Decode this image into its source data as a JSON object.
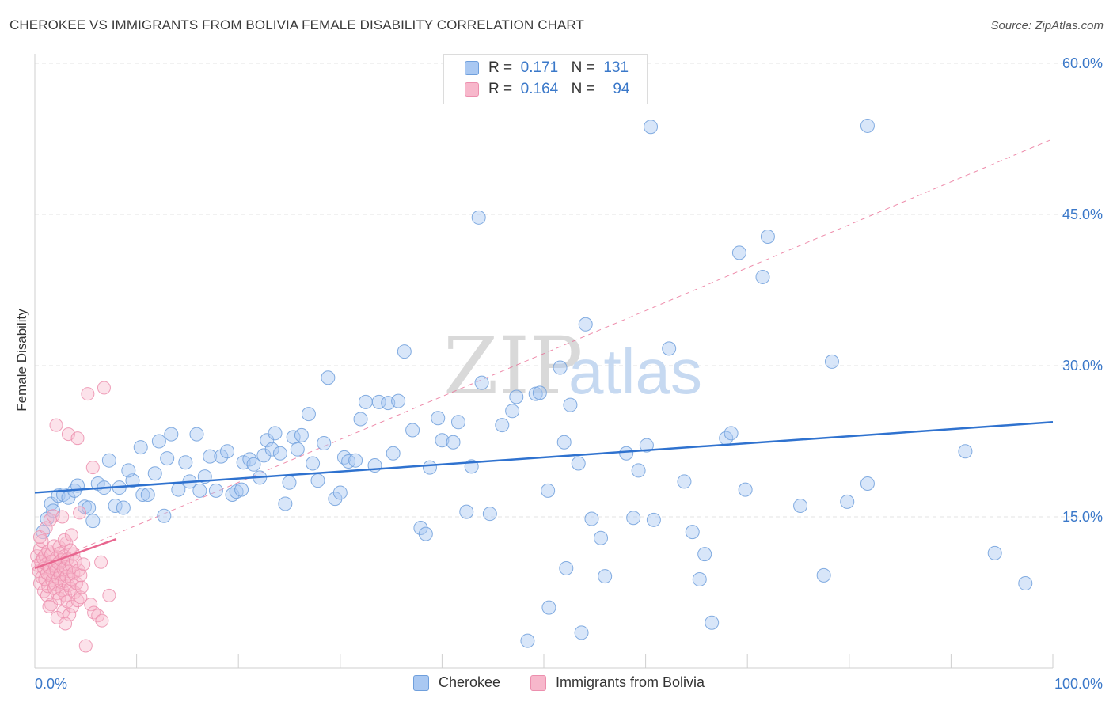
{
  "title": "CHEROKEE VS IMMIGRANTS FROM BOLIVIA FEMALE DISABILITY CORRELATION CHART",
  "source": "Source: ZipAtlas.com",
  "watermark": {
    "zip": "ZIP",
    "atlas": "atlas"
  },
  "legend": {
    "r_label": "R =",
    "n_label": "N =",
    "rows": [
      {
        "name": "Cherokee",
        "r": "0.171",
        "n": "131"
      },
      {
        "name": "Immigrants from Bolivia",
        "r": "0.164",
        "n": "94"
      }
    ]
  },
  "bottom_legend": [
    "Cherokee",
    "Immigrants from Bolivia"
  ],
  "colors": {
    "blue_fill": "#a9c8f2",
    "blue_stroke": "#6f9fdc",
    "blue_line": "#2f72cf",
    "pink_fill": "#f7b7cb",
    "pink_stroke": "#ec8fae",
    "pink_line": "#e8668f",
    "axis_text": "#3a78c9",
    "grid": "#e3e3e3"
  },
  "chart_data": {
    "type": "scatter",
    "title": "CHEROKEE VS IMMIGRANTS FROM BOLIVIA FEMALE DISABILITY CORRELATION CHART",
    "xlabel": "",
    "ylabel": "Female Disability",
    "xlim": [
      0,
      100
    ],
    "ylim": [
      0,
      60
    ],
    "x_tick_labels": [
      "0.0%",
      "100.0%"
    ],
    "y_ticks": [
      15,
      30,
      45,
      60
    ],
    "y_tick_labels": [
      "15.0%",
      "30.0%",
      "45.0%",
      "60.0%"
    ],
    "grid": "horizontal dashed",
    "series": [
      {
        "name": "Cherokee",
        "trend": {
          "x": [
            0,
            100
          ],
          "y": [
            17.4,
            24.4
          ],
          "style": "solid"
        },
        "points": [
          [
            0.8,
            13.5
          ],
          [
            1.2,
            14.8
          ],
          [
            1.6,
            16.3
          ],
          [
            1.8,
            15.6
          ],
          [
            2.3,
            17.1
          ],
          [
            2.8,
            17.2
          ],
          [
            3.3,
            16.9
          ],
          [
            3.9,
            17.6
          ],
          [
            4.2,
            18.1
          ],
          [
            4.9,
            16.0
          ],
          [
            5.3,
            15.9
          ],
          [
            5.7,
            14.6
          ],
          [
            6.2,
            18.3
          ],
          [
            6.8,
            17.9
          ],
          [
            7.3,
            20.6
          ],
          [
            7.9,
            16.1
          ],
          [
            8.3,
            17.9
          ],
          [
            8.7,
            15.9
          ],
          [
            9.6,
            18.6
          ],
          [
            9.2,
            19.6
          ],
          [
            10.4,
            21.9
          ],
          [
            10.6,
            17.2
          ],
          [
            11.1,
            17.2
          ],
          [
            11.8,
            19.3
          ],
          [
            12.2,
            22.5
          ],
          [
            12.7,
            15.1
          ],
          [
            13.0,
            20.8
          ],
          [
            13.4,
            23.2
          ],
          [
            14.1,
            17.7
          ],
          [
            14.8,
            20.4
          ],
          [
            15.2,
            18.5
          ],
          [
            15.9,
            23.2
          ],
          [
            16.2,
            17.6
          ],
          [
            16.7,
            19.0
          ],
          [
            17.2,
            21.0
          ],
          [
            17.8,
            17.6
          ],
          [
            18.3,
            21.0
          ],
          [
            18.9,
            21.5
          ],
          [
            19.4,
            17.2
          ],
          [
            19.8,
            17.5
          ],
          [
            20.3,
            17.7
          ],
          [
            20.5,
            20.4
          ],
          [
            21.1,
            20.7
          ],
          [
            21.5,
            20.2
          ],
          [
            22.1,
            18.9
          ],
          [
            22.5,
            21.1
          ],
          [
            22.8,
            22.6
          ],
          [
            23.3,
            21.7
          ],
          [
            23.6,
            23.3
          ],
          [
            24.1,
            21.3
          ],
          [
            24.6,
            16.3
          ],
          [
            25.0,
            18.4
          ],
          [
            25.4,
            22.9
          ],
          [
            25.8,
            21.7
          ],
          [
            26.2,
            23.1
          ],
          [
            26.9,
            25.2
          ],
          [
            27.3,
            20.3
          ],
          [
            27.8,
            18.6
          ],
          [
            28.4,
            22.3
          ],
          [
            28.8,
            28.8
          ],
          [
            29.5,
            16.8
          ],
          [
            30.0,
            17.4
          ],
          [
            30.4,
            20.9
          ],
          [
            30.8,
            20.5
          ],
          [
            31.5,
            20.6
          ],
          [
            32.0,
            24.7
          ],
          [
            32.5,
            26.4
          ],
          [
            33.4,
            20.1
          ],
          [
            33.8,
            26.4
          ],
          [
            34.7,
            26.3
          ],
          [
            35.2,
            21.3
          ],
          [
            35.7,
            26.5
          ],
          [
            36.3,
            31.4
          ],
          [
            37.1,
            23.6
          ],
          [
            37.9,
            13.9
          ],
          [
            38.4,
            13.3
          ],
          [
            38.8,
            19.9
          ],
          [
            39.6,
            24.8
          ],
          [
            40.0,
            22.6
          ],
          [
            41.1,
            22.4
          ],
          [
            41.6,
            24.4
          ],
          [
            42.4,
            15.5
          ],
          [
            42.9,
            20.0
          ],
          [
            43.6,
            44.7
          ],
          [
            43.9,
            28.3
          ],
          [
            44.7,
            15.3
          ],
          [
            45.9,
            24.1
          ],
          [
            46.9,
            25.5
          ],
          [
            47.3,
            26.9
          ],
          [
            48.4,
            2.7
          ],
          [
            49.2,
            27.2
          ],
          [
            49.6,
            27.3
          ],
          [
            50.4,
            17.6
          ],
          [
            50.5,
            6.0
          ],
          [
            51.6,
            29.8
          ],
          [
            52.0,
            22.4
          ],
          [
            52.2,
            9.9
          ],
          [
            52.6,
            26.1
          ],
          [
            53.4,
            20.3
          ],
          [
            53.7,
            3.5
          ],
          [
            54.1,
            34.1
          ],
          [
            54.7,
            14.8
          ],
          [
            55.6,
            12.9
          ],
          [
            56.0,
            9.1
          ],
          [
            58.1,
            21.3
          ],
          [
            58.8,
            14.9
          ],
          [
            59.3,
            19.6
          ],
          [
            60.1,
            22.1
          ],
          [
            60.5,
            53.7
          ],
          [
            60.8,
            14.7
          ],
          [
            62.3,
            31.7
          ],
          [
            63.8,
            18.5
          ],
          [
            64.6,
            13.5
          ],
          [
            65.3,
            8.8
          ],
          [
            65.8,
            11.3
          ],
          [
            66.5,
            4.5
          ],
          [
            67.9,
            22.8
          ],
          [
            68.4,
            23.3
          ],
          [
            69.2,
            41.2
          ],
          [
            69.8,
            17.7
          ],
          [
            71.5,
            38.8
          ],
          [
            72.0,
            42.8
          ],
          [
            75.2,
            16.1
          ],
          [
            77.5,
            9.2
          ],
          [
            78.3,
            30.4
          ],
          [
            79.8,
            16.5
          ],
          [
            81.8,
            18.3
          ],
          [
            81.8,
            53.8
          ],
          [
            91.4,
            21.5
          ],
          [
            94.3,
            11.4
          ],
          [
            97.3,
            8.4
          ]
        ]
      },
      {
        "name": "Immigrants from Bolivia",
        "trend": {
          "x": [
            0,
            8.0
          ],
          "y": [
            9.9,
            12.8
          ],
          "style": "solid",
          "extended": {
            "x": [
              0,
              100
            ],
            "y": [
              9.9,
              52.5
            ],
            "style": "dashed"
          }
        },
        "points": [
          [
            0.2,
            11.1
          ],
          [
            0.3,
            10.2
          ],
          [
            0.4,
            9.6
          ],
          [
            0.5,
            11.8
          ],
          [
            0.5,
            8.4
          ],
          [
            0.6,
            10.5
          ],
          [
            0.7,
            9.0
          ],
          [
            0.7,
            12.6
          ],
          [
            0.8,
            10.9
          ],
          [
            0.9,
            7.6
          ],
          [
            0.9,
            9.9
          ],
          [
            1.0,
            11.2
          ],
          [
            1.0,
            8.8
          ],
          [
            1.1,
            10.3
          ],
          [
            1.2,
            9.4
          ],
          [
            1.2,
            7.2
          ],
          [
            1.3,
            11.6
          ],
          [
            1.3,
            8.1
          ],
          [
            1.4,
            10.0
          ],
          [
            1.5,
            9.2
          ],
          [
            1.5,
            14.7
          ],
          [
            1.6,
            6.3
          ],
          [
            1.6,
            11.3
          ],
          [
            1.7,
            8.7
          ],
          [
            1.7,
            10.6
          ],
          [
            1.8,
            9.5
          ],
          [
            1.8,
            15.1
          ],
          [
            1.9,
            7.9
          ],
          [
            1.9,
            12.1
          ],
          [
            2.0,
            10.1
          ],
          [
            2.0,
            8.3
          ],
          [
            2.1,
            24.1
          ],
          [
            2.1,
            9.7
          ],
          [
            2.2,
            11.0
          ],
          [
            2.2,
            7.4
          ],
          [
            2.3,
            10.4
          ],
          [
            2.3,
            8.9
          ],
          [
            2.4,
            12.0
          ],
          [
            2.4,
            6.9
          ],
          [
            2.5,
            9.3
          ],
          [
            2.5,
            11.4
          ],
          [
            2.6,
            8.5
          ],
          [
            2.6,
            10.7
          ],
          [
            2.7,
            7.7
          ],
          [
            2.7,
            15.0
          ],
          [
            2.8,
            9.8
          ],
          [
            2.8,
            5.6
          ],
          [
            2.9,
            11.1
          ],
          [
            2.9,
            8.6
          ],
          [
            3.0,
            10.0
          ],
          [
            3.0,
            7.2
          ],
          [
            3.1,
            12.4
          ],
          [
            3.1,
            9.1
          ],
          [
            3.2,
            6.6
          ],
          [
            3.2,
            10.8
          ],
          [
            3.3,
            8.2
          ],
          [
            3.3,
            23.2
          ],
          [
            3.4,
            9.6
          ],
          [
            3.4,
            5.3
          ],
          [
            3.5,
            11.7
          ],
          [
            3.5,
            7.9
          ],
          [
            3.6,
            10.2
          ],
          [
            3.6,
            8.8
          ],
          [
            3.7,
            6.1
          ],
          [
            3.8,
            9.4
          ],
          [
            3.8,
            11.3
          ],
          [
            3.9,
            7.5
          ],
          [
            4.0,
            10.6
          ],
          [
            4.1,
            8.4
          ],
          [
            4.2,
            22.8
          ],
          [
            4.2,
            6.7
          ],
          [
            4.3,
            9.7
          ],
          [
            4.4,
            15.4
          ],
          [
            4.5,
            7.0
          ],
          [
            4.5,
            9.2
          ],
          [
            4.6,
            8.0
          ],
          [
            4.8,
            10.3
          ],
          [
            5.0,
            2.2
          ],
          [
            5.2,
            27.2
          ],
          [
            5.5,
            6.3
          ],
          [
            5.7,
            19.9
          ],
          [
            5.8,
            5.5
          ],
          [
            6.2,
            5.2
          ],
          [
            6.5,
            10.5
          ],
          [
            6.6,
            4.7
          ],
          [
            6.8,
            27.8
          ],
          [
            7.3,
            7.2
          ],
          [
            0.5,
            13.0
          ],
          [
            1.1,
            13.9
          ],
          [
            2.9,
            12.7
          ],
          [
            3.6,
            13.2
          ],
          [
            1.4,
            6.1
          ],
          [
            2.2,
            5.0
          ],
          [
            3.0,
            4.4
          ]
        ]
      }
    ]
  }
}
